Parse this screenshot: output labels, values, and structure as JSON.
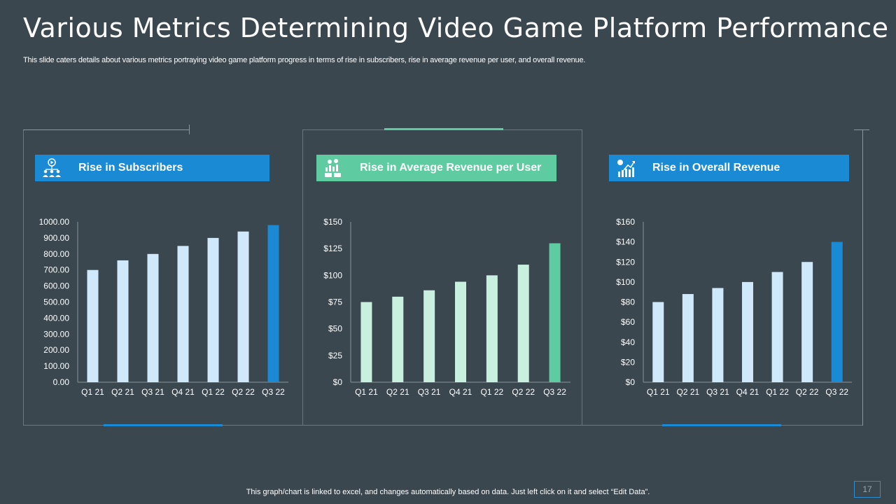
{
  "slide": {
    "title": "Various Metrics Determining Video Game Platform Performance",
    "subtitle": "This slide caters details about various metrics portraying video game platform progress in terms of rise in subscribers, rise in average revenue per user, and overall revenue.",
    "footer": "This graph/chart is linked to excel,  and changes automatically based on data. Just left click on it and select “Edit Data”.",
    "page_number": "17"
  },
  "panels": [
    {
      "heading": "Rise in Subscribers",
      "icon": "subscribers-icon",
      "header_color": "#1a8ad4"
    },
    {
      "heading": "Rise in Average Revenue per User",
      "icon": "revenue-per-user-icon",
      "header_color": "#5ecba1"
    },
    {
      "heading": "Rise in Overall Revenue",
      "icon": "overall-revenue-icon",
      "header_color": "#1a8ad4"
    }
  ],
  "chart_data": [
    {
      "type": "bar",
      "title": "Rise in Subscribers",
      "categories": [
        "Q1 21",
        "Q2 21",
        "Q3 21",
        "Q4 21",
        "Q1 22",
        "Q2 22",
        "Q3 22"
      ],
      "values": [
        700,
        760,
        800,
        850,
        900,
        940,
        980
      ],
      "ylim": [
        0,
        1000
      ],
      "yticks": [
        "0.00",
        "100.00",
        "200.00",
        "300.00",
        "400.00",
        "500.00",
        "600.00",
        "700.00",
        "800.00",
        "900.00",
        "1000.00"
      ],
      "bar_color": "#cfe9fb",
      "highlight_color": "#1a8ad4"
    },
    {
      "type": "bar",
      "title": "Rise in Average Revenue per User",
      "categories": [
        "Q1 21",
        "Q2 21",
        "Q3 21",
        "Q4 21",
        "Q1 22",
        "Q2 22",
        "Q3 22"
      ],
      "values": [
        75,
        80,
        86,
        94,
        100,
        110,
        130
      ],
      "ylim": [
        0,
        150
      ],
      "yticks": [
        "$0",
        "$25",
        "$50",
        "$75",
        "$100",
        "$125",
        "$150"
      ],
      "bar_color": "#c9efdf",
      "highlight_color": "#5ecba1"
    },
    {
      "type": "bar",
      "title": "Rise in Overall Revenue",
      "categories": [
        "Q1 21",
        "Q2 21",
        "Q3 21",
        "Q4 21",
        "Q1 22",
        "Q2 22",
        "Q3 22"
      ],
      "values": [
        80,
        88,
        94,
        100,
        110,
        120,
        140
      ],
      "ylim": [
        0,
        160
      ],
      "yticks": [
        "$0",
        "$20",
        "$40",
        "$60",
        "$80",
        "$100",
        "$120",
        "$140",
        "$160"
      ],
      "bar_color": "#cfe9fb",
      "highlight_color": "#1a8ad4"
    }
  ]
}
